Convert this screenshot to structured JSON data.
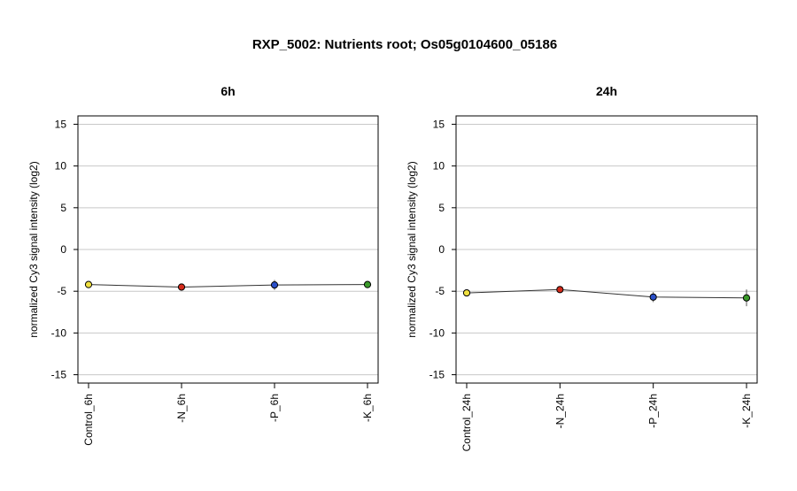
{
  "title": "RXP_5002: Nutrients root; Os05g0104600_05186",
  "chart_data": [
    {
      "type": "line",
      "title": "6h",
      "ylabel": "normalized Cy3 signal intensity (log2)",
      "ylim": [
        -16,
        16
      ],
      "yticks": [
        15,
        10,
        5,
        0,
        -5,
        -10,
        -15
      ],
      "grid": true,
      "categories": [
        "Control_6h",
        "-N_6h",
        "-P_6h",
        "-K_6h"
      ],
      "values": [
        -4.2,
        -4.5,
        -4.25,
        -4.2
      ],
      "errors": [
        0.35,
        0.2,
        0.6,
        0.3
      ],
      "colors": [
        "#f0e040",
        "#d42a1a",
        "#2a4fc8",
        "#3a9a2a"
      ]
    },
    {
      "type": "line",
      "title": "24h",
      "ylabel": "normalized Cy3 signal intensity (log2)",
      "ylim": [
        -16,
        16
      ],
      "yticks": [
        15,
        10,
        5,
        0,
        -5,
        -10,
        -15
      ],
      "grid": true,
      "categories": [
        "Control_24h",
        "-N_24h",
        "-P_24h",
        "-K_24h"
      ],
      "values": [
        -5.2,
        -4.8,
        -5.7,
        -5.8
      ],
      "errors": [
        0.2,
        0.3,
        0.6,
        1.0
      ],
      "colors": [
        "#f0e040",
        "#d42a1a",
        "#2a4fc8",
        "#3a9a2a"
      ]
    }
  ]
}
